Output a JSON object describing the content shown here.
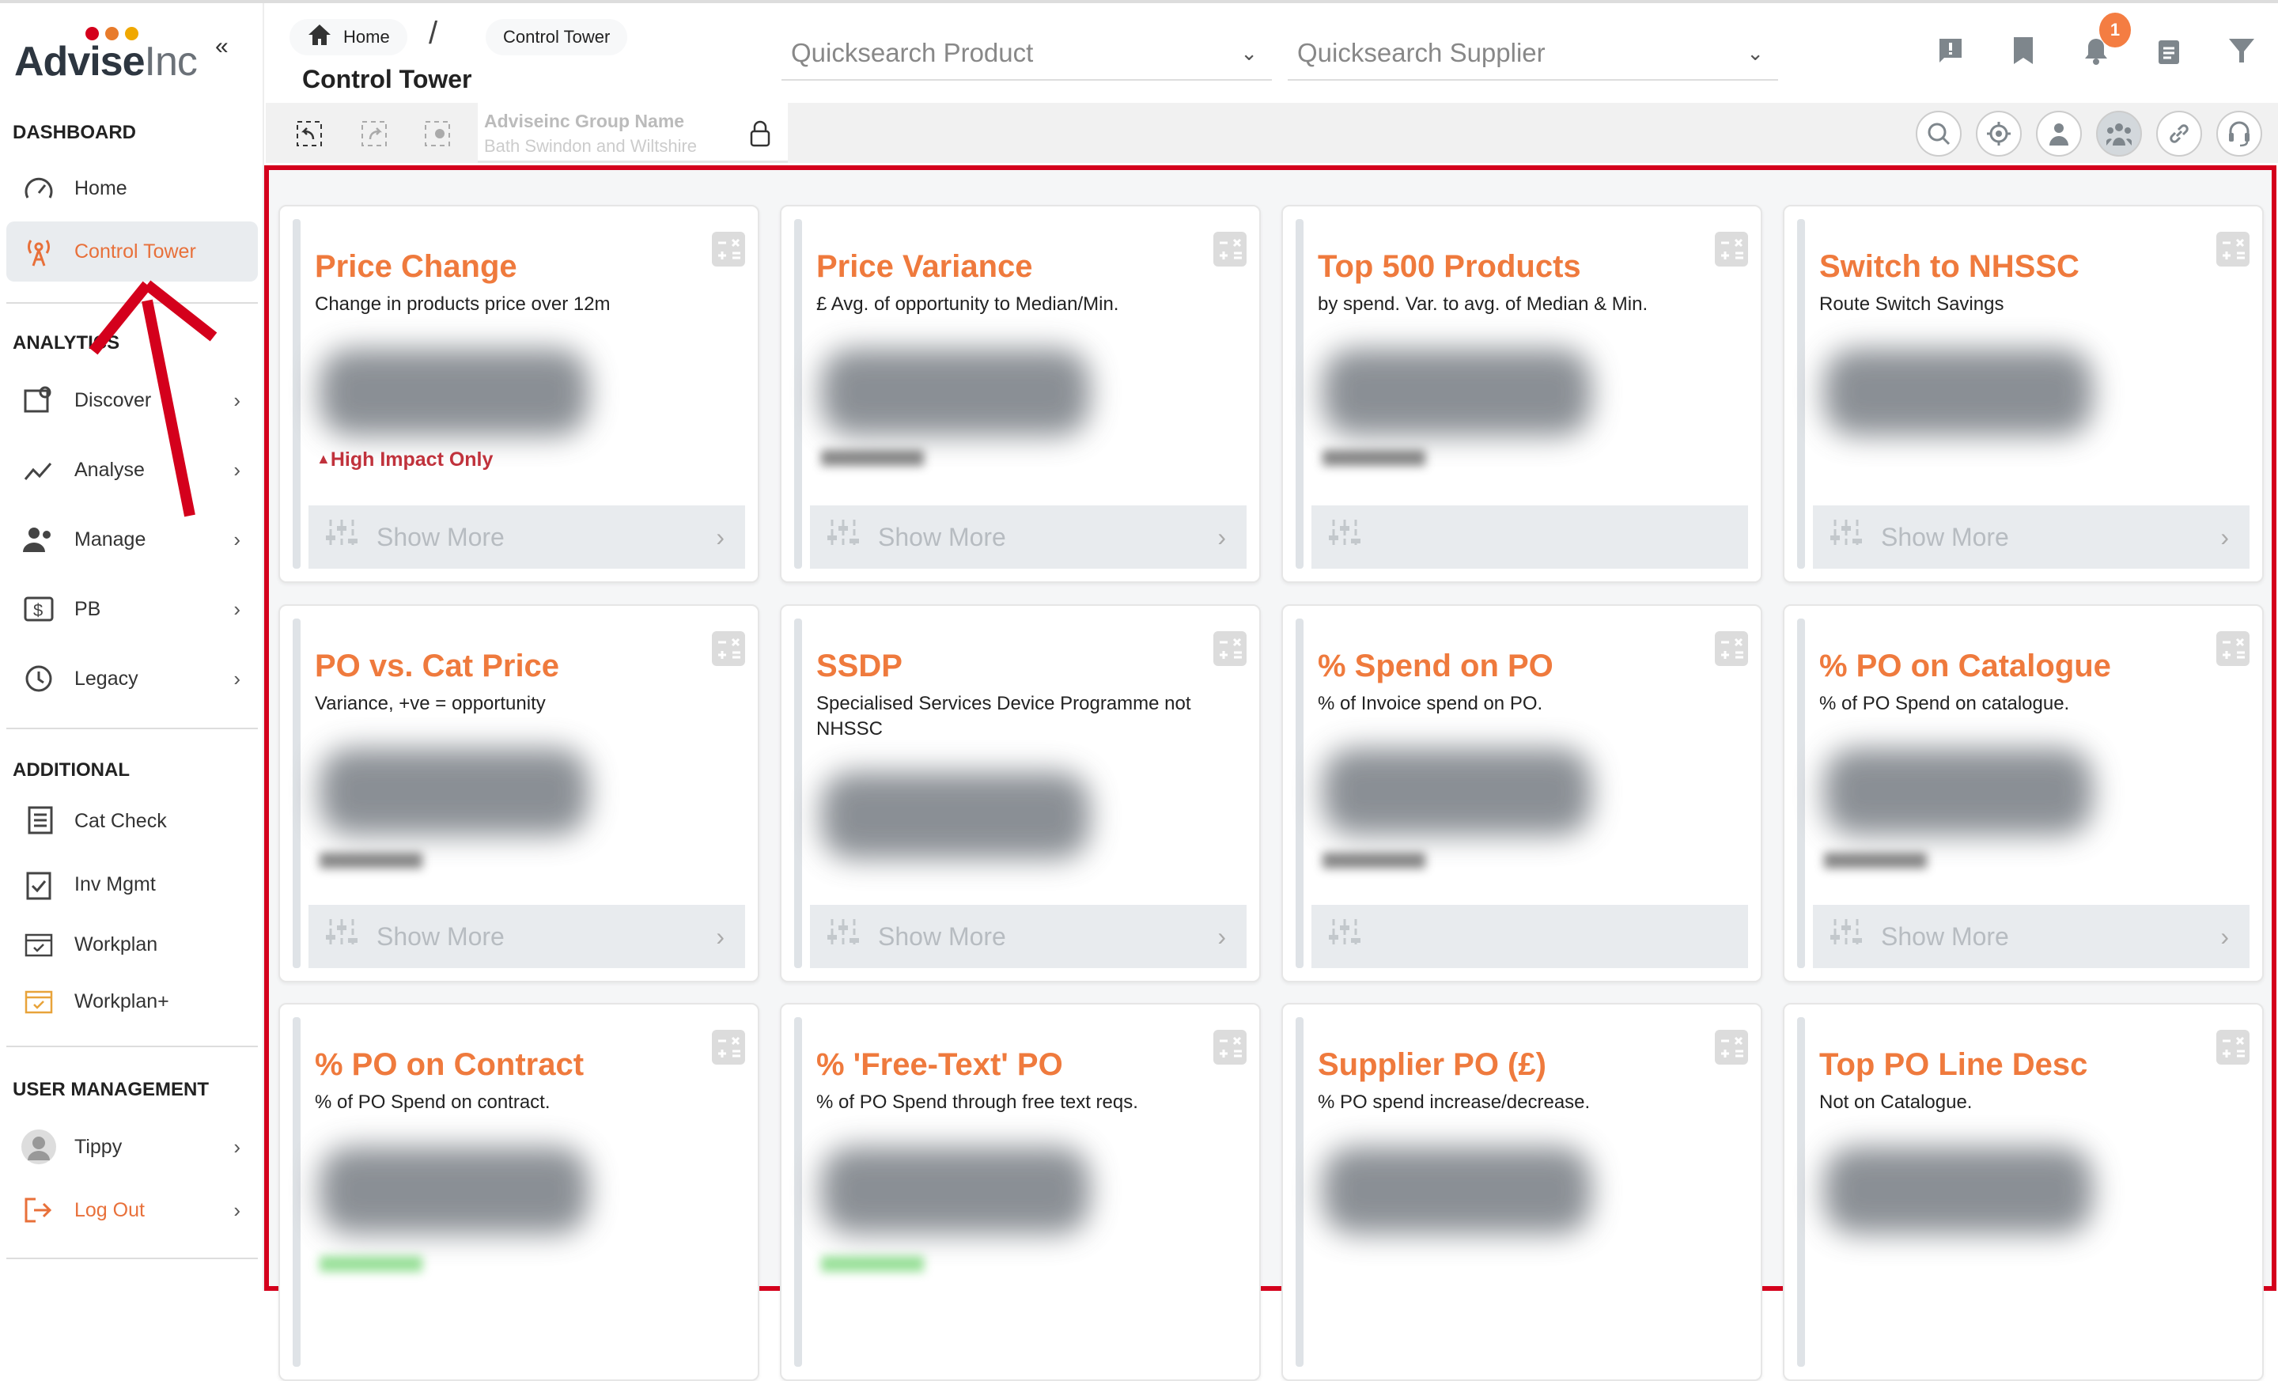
{
  "brand": {
    "name_bold": "Advise",
    "name_light": "Inc",
    "dot_colors": [
      "#d4001c",
      "#e87b2b",
      "#f0a800"
    ]
  },
  "sidebar": {
    "sections": [
      {
        "label": "DASHBOARD",
        "items": [
          {
            "label": "Home",
            "icon": "gauge-icon"
          },
          {
            "label": "Control Tower",
            "icon": "broadcast-tower-icon",
            "active": true
          }
        ]
      },
      {
        "label": "ANALYTICS",
        "items": [
          {
            "label": "Discover",
            "icon": "image-search-icon"
          },
          {
            "label": "Analyse",
            "icon": "trend-icon"
          },
          {
            "label": "Manage",
            "icon": "users-icon"
          },
          {
            "label": "PB",
            "icon": "dollar-icon"
          },
          {
            "label": "Legacy",
            "icon": "history-icon"
          }
        ]
      },
      {
        "label": "ADDITIONAL",
        "items": [
          {
            "label": "Cat Check",
            "icon": "catalogue-icon"
          },
          {
            "label": "Inv Mgmt",
            "icon": "clipboard-check-icon"
          },
          {
            "label": "Workplan",
            "icon": "calendar-icon"
          },
          {
            "label": "Workplan+",
            "icon": "calendar-plus-icon"
          }
        ]
      },
      {
        "label": "USER MANAGEMENT",
        "items": [
          {
            "label": "Tippy",
            "icon": "avatar-icon"
          },
          {
            "label": "Log Out",
            "icon": "logout-icon"
          }
        ]
      }
    ]
  },
  "header": {
    "breadcrumb": [
      "Home",
      "Control Tower"
    ],
    "separator": "/",
    "title": "Control Tower",
    "quicksearch_product": "Quicksearch Product",
    "quicksearch_supplier": "Quicksearch Supplier",
    "notification_count": "1",
    "group_label": "Adviseinc Group Name",
    "group_value": "Bath Swindon and Wiltshire"
  },
  "accent": "#ef7a3d",
  "annotation_color": "#d4001c",
  "cards": [
    {
      "title": "Price Change",
      "subtitle": "Change in products price over 12m",
      "extra": "High Impact Only",
      "show_more": "Show More"
    },
    {
      "title": "Price Variance",
      "subtitle": "£ Avg. of opportunity to Median/Min.",
      "show_more": "Show More"
    },
    {
      "title": "Top 500 Products",
      "subtitle": "by spend. Var. to avg. of Median & Min.",
      "show_more": ""
    },
    {
      "title": "Switch to NHSSC",
      "subtitle": "Route Switch Savings",
      "show_more": "Show More"
    },
    {
      "title": "PO vs. Cat Price",
      "subtitle": "Variance, +ve = opportunity",
      "show_more": "Show More"
    },
    {
      "title": "SSDP",
      "subtitle": "Specialised Services Device Programme not NHSSC",
      "show_more": "Show More"
    },
    {
      "title": "% Spend on PO",
      "subtitle": "% of Invoice spend on PO.",
      "show_more": ""
    },
    {
      "title": "% PO on Catalogue",
      "subtitle": "% of PO Spend on catalogue.",
      "show_more": "Show More"
    },
    {
      "title": "% PO on Contract",
      "subtitle": "% of PO Spend on contract."
    },
    {
      "title": "% 'Free-Text' PO",
      "subtitle": "% of PO Spend through free text reqs."
    },
    {
      "title": "Supplier PO (£)",
      "subtitle": "% PO spend increase/decrease."
    },
    {
      "title": "Top PO Line Desc",
      "subtitle": "Not on Catalogue."
    }
  ]
}
